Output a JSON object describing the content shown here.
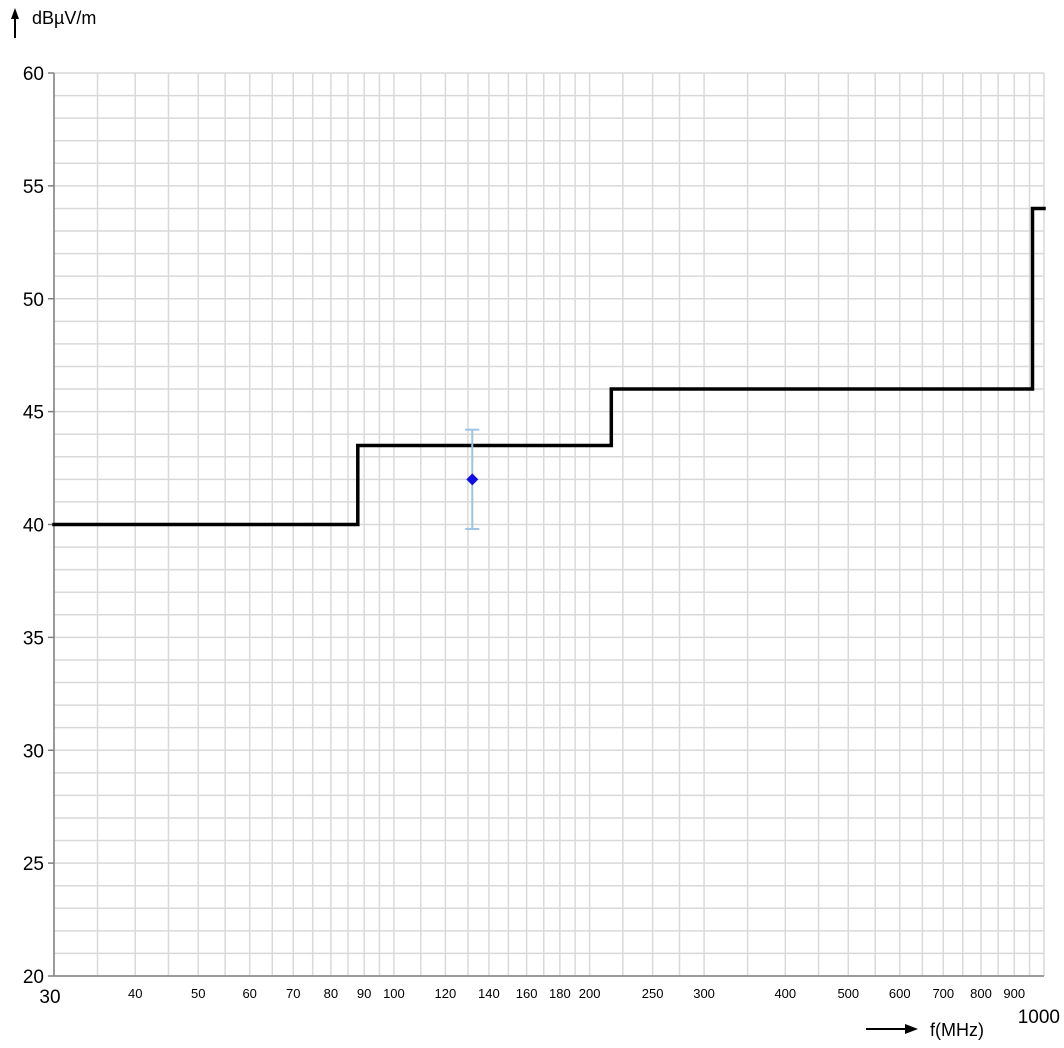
{
  "chart_data": {
    "type": "line",
    "title": "",
    "xlabel": "f(MHz)",
    "ylabel": "dBµV/m",
    "x_scale": "log",
    "xlim": [
      30,
      1000
    ],
    "ylim": [
      20,
      60
    ],
    "grid": true,
    "y_ticks": [
      "60",
      "55",
      "50",
      "45",
      "40",
      "35",
      "30",
      "25",
      "20"
    ],
    "y_values": [
      60,
      55,
      50,
      45,
      40,
      35,
      30,
      25,
      20
    ],
    "x_ticks": [
      {
        "value": 30,
        "label": "30"
      },
      {
        "value": 40,
        "label": "40"
      },
      {
        "value": 50,
        "label": "50"
      },
      {
        "value": 60,
        "label": "60"
      },
      {
        "value": 70,
        "label": "70"
      },
      {
        "value": 80,
        "label": "80"
      },
      {
        "value": 90,
        "label": "90"
      },
      {
        "value": 100,
        "label": "100"
      },
      {
        "value": 120,
        "label": "120"
      },
      {
        "value": 140,
        "label": "140"
      },
      {
        "value": 160,
        "label": "160"
      },
      {
        "value": 180,
        "label": "180"
      },
      {
        "value": 200,
        "label": "200"
      },
      {
        "value": 250,
        "label": "250"
      },
      {
        "value": 300,
        "label": "300"
      },
      {
        "value": 400,
        "label": "400"
      },
      {
        "value": 500,
        "label": "500"
      },
      {
        "value": 600,
        "label": "600"
      },
      {
        "value": 700,
        "label": "700"
      },
      {
        "value": 800,
        "label": "800"
      },
      {
        "value": 900,
        "label": "900"
      },
      {
        "value": 1000,
        "label": "1000"
      }
    ],
    "x_grid": [
      30,
      35,
      40,
      45,
      50,
      55,
      60,
      65,
      70,
      75,
      80,
      85,
      90,
      95,
      100,
      110,
      120,
      130,
      140,
      150,
      160,
      170,
      180,
      190,
      200,
      225,
      250,
      275,
      300,
      350,
      400,
      450,
      500,
      550,
      600,
      650,
      700,
      750,
      800,
      850,
      900,
      950,
      1000
    ],
    "y_grid_step": 1,
    "y_grid_major_step": 5,
    "limit_line": {
      "color": "#000000",
      "points": [
        [
          30,
          40
        ],
        [
          88,
          40
        ],
        [
          88,
          43.5
        ],
        [
          216,
          43.5
        ],
        [
          216,
          46
        ],
        [
          960,
          46
        ],
        [
          960,
          54
        ],
        [
          1000,
          54
        ]
      ]
    },
    "measurement": {
      "x": 132,
      "y": 42,
      "error_low": 39.8,
      "error_high": 44.2,
      "marker_color": "#1010e6",
      "error_color": "#9ec3e6"
    },
    "colors": {
      "grid": "#d9d9d9",
      "axis": "#808080"
    }
  }
}
